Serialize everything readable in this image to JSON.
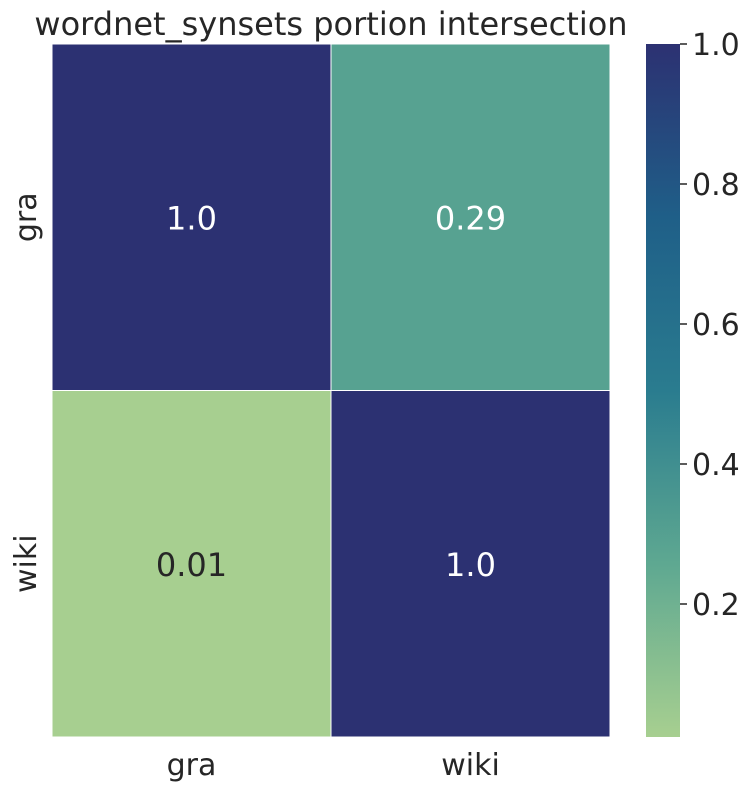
{
  "chart_data": {
    "type": "heatmap",
    "title": "wordnet_synsets portion intersection",
    "x_categories": [
      "gra",
      "wiki"
    ],
    "y_categories": [
      "gra",
      "wiki"
    ],
    "values": [
      [
        1.0,
        0.29
      ],
      [
        0.01,
        1.0
      ]
    ],
    "annotations": [
      [
        "1.0",
        "0.29"
      ],
      [
        "0.01",
        "1.0"
      ]
    ],
    "colorbar": {
      "min": 0.01,
      "max": 1.0,
      "ticks": [
        0.2,
        0.4,
        0.6,
        0.8,
        1.0
      ],
      "tick_labels": [
        "0.2",
        "0.4",
        "0.6",
        "0.8",
        "1.0"
      ]
    },
    "colormap": [
      "#a7cf90",
      "#5ea891",
      "#2a7c8f",
      "#1f5f88",
      "#2c3172"
    ],
    "annotation_colors": {
      "dark_cell": "#ffffff",
      "light_cell": "#262626"
    },
    "grid_line_color": "#ffffff",
    "text_color": "#262626"
  }
}
